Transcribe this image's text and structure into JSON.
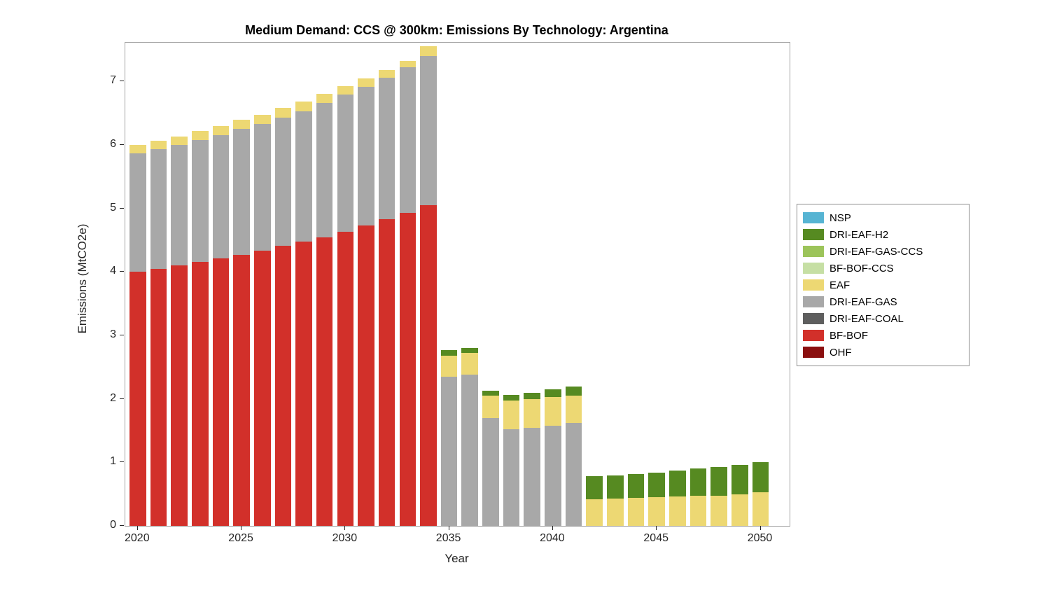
{
  "chart_data": {
    "type": "bar",
    "stacked": true,
    "title": "Medium Demand: CCS @ 300km: Emissions By Technology: Argentina",
    "xlabel": "Year",
    "ylabel": "Emissions (MtCO2e)",
    "xlim": [
      2019.4,
      2051.4
    ],
    "ylim": [
      0,
      7.61
    ],
    "xticks": [
      2020,
      2025,
      2030,
      2035,
      2040,
      2045,
      2050
    ],
    "yticks": [
      0,
      1,
      2,
      3,
      4,
      5,
      6,
      7
    ],
    "bar_width_fraction": 0.8,
    "grid": false,
    "legend_position": "right-outside",
    "legend_order": [
      "NSP",
      "DRI-EAF-H2",
      "DRI-EAF-GAS-CCS",
      "BF-BOF-CCS",
      "EAF",
      "DRI-EAF-GAS",
      "DRI-EAF-COAL",
      "BF-BOF",
      "OHF"
    ],
    "categories": [
      2020,
      2021,
      2022,
      2023,
      2024,
      2025,
      2026,
      2027,
      2028,
      2029,
      2030,
      2031,
      2032,
      2033,
      2034,
      2035,
      2036,
      2037,
      2038,
      2039,
      2040,
      2041,
      2042,
      2043,
      2044,
      2045,
      2046,
      2047,
      2048,
      2049,
      2050
    ],
    "series": [
      {
        "name": "OHF",
        "color": "#8B0F0F",
        "values": [
          0,
          0,
          0,
          0,
          0,
          0,
          0,
          0,
          0,
          0,
          0,
          0,
          0,
          0,
          0,
          0,
          0,
          0,
          0,
          0,
          0,
          0,
          0,
          0,
          0,
          0,
          0,
          0,
          0,
          0,
          0
        ]
      },
      {
        "name": "BF-BOF",
        "color": "#D2302A",
        "values": [
          4.0,
          4.05,
          4.1,
          4.16,
          4.21,
          4.27,
          4.34,
          4.41,
          4.48,
          4.55,
          4.63,
          4.73,
          4.83,
          4.93,
          5.05,
          0,
          0,
          0,
          0,
          0,
          0,
          0,
          0,
          0,
          0,
          0,
          0,
          0,
          0,
          0,
          0
        ]
      },
      {
        "name": "DRI-EAF-COAL",
        "color": "#5E5E5E",
        "values": [
          0,
          0,
          0,
          0,
          0,
          0,
          0,
          0,
          0,
          0,
          0,
          0,
          0,
          0,
          0,
          0,
          0,
          0,
          0,
          0,
          0,
          0,
          0,
          0,
          0,
          0,
          0,
          0,
          0,
          0,
          0
        ]
      },
      {
        "name": "DRI-EAF-GAS",
        "color": "#A8A8A8",
        "values": [
          1.87,
          1.88,
          1.9,
          1.92,
          1.94,
          1.98,
          1.99,
          2.02,
          2.05,
          2.11,
          2.16,
          2.19,
          2.23,
          2.29,
          2.35,
          2.35,
          2.38,
          1.7,
          1.52,
          1.55,
          1.58,
          1.62,
          0,
          0,
          0,
          0,
          0,
          0,
          0,
          0,
          0
        ]
      },
      {
        "name": "EAF",
        "color": "#EDD873",
        "values": [
          0.13,
          0.14,
          0.13,
          0.14,
          0.15,
          0.15,
          0.15,
          0.15,
          0.15,
          0.14,
          0.14,
          0.13,
          0.12,
          0.1,
          0.15,
          0.33,
          0.34,
          0.35,
          0.45,
          0.45,
          0.45,
          0.43,
          0.42,
          0.43,
          0.44,
          0.45,
          0.46,
          0.47,
          0.48,
          0.5,
          0.53
        ]
      },
      {
        "name": "BF-BOF-CCS",
        "color": "#C6DFA4",
        "values": [
          0,
          0,
          0,
          0,
          0,
          0,
          0,
          0,
          0,
          0,
          0,
          0,
          0,
          0,
          0,
          0,
          0,
          0,
          0,
          0,
          0,
          0,
          0,
          0,
          0,
          0,
          0,
          0,
          0,
          0,
          0
        ]
      },
      {
        "name": "DRI-EAF-GAS-CCS",
        "color": "#9CC45A",
        "values": [
          0,
          0,
          0,
          0,
          0,
          0,
          0,
          0,
          0,
          0,
          0,
          0,
          0,
          0,
          0,
          0,
          0,
          0,
          0,
          0,
          0,
          0,
          0,
          0,
          0,
          0,
          0,
          0,
          0,
          0,
          0
        ]
      },
      {
        "name": "DRI-EAF-H2",
        "color": "#568A21",
        "values": [
          0,
          0,
          0,
          0,
          0,
          0,
          0,
          0,
          0,
          0,
          0,
          0,
          0,
          0,
          0,
          0.09,
          0.08,
          0.08,
          0.09,
          0.1,
          0.12,
          0.15,
          0.36,
          0.37,
          0.38,
          0.39,
          0.41,
          0.43,
          0.45,
          0.46,
          0.47
        ]
      },
      {
        "name": "NSP",
        "color": "#56B4D3",
        "values": [
          0,
          0,
          0,
          0,
          0,
          0,
          0,
          0,
          0,
          0,
          0,
          0,
          0,
          0,
          0,
          0,
          0,
          0,
          0,
          0,
          0,
          0,
          0,
          0,
          0,
          0,
          0,
          0,
          0,
          0,
          0
        ]
      }
    ]
  }
}
